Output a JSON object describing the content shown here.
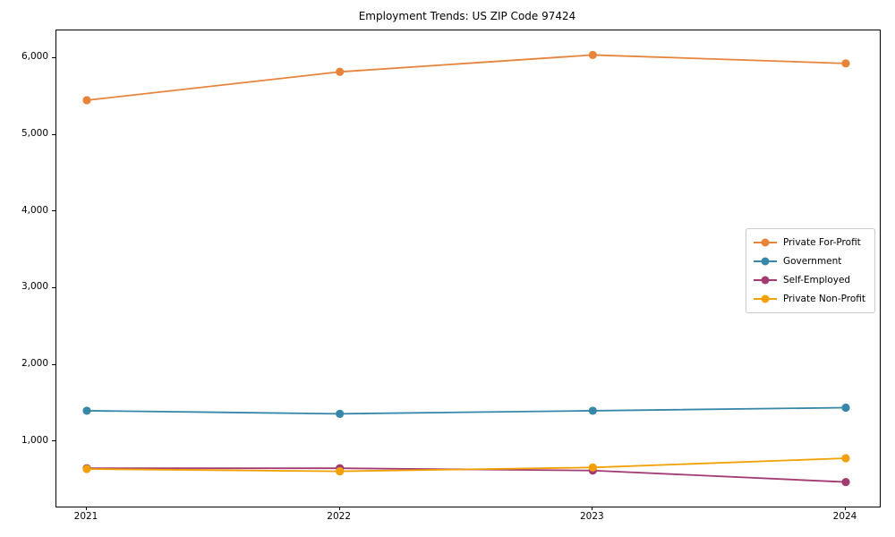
{
  "chart_data": {
    "type": "line",
    "title": "Employment Trends: US ZIP Code 97424",
    "categories": [
      "2021",
      "2022",
      "2023",
      "2024"
    ],
    "series": [
      {
        "name": "Private For-Profit",
        "color": "#E8833A",
        "values": [
          5450,
          5820,
          6040,
          5930
        ]
      },
      {
        "name": "Government",
        "color": "#3787A8",
        "values": [
          1400,
          1360,
          1400,
          1440
        ]
      },
      {
        "name": "Self-Employed",
        "color": "#A23B72",
        "values": [
          650,
          650,
          620,
          470
        ]
      },
      {
        "name": "Private Non-Profit",
        "color": "#F2A104",
        "values": [
          640,
          610,
          660,
          780
        ]
      }
    ],
    "xlabel": "",
    "ylabel": "",
    "ylim": [
      150,
      6360
    ],
    "yticks": [
      1000,
      2000,
      3000,
      4000,
      5000,
      6000
    ],
    "ytick_labels": [
      "1,000",
      "2,000",
      "3,000",
      "4,000",
      "5,000",
      "6,000"
    ],
    "grid": false,
    "legend_position": "center right",
    "marker": "circle",
    "line_width": 1.8,
    "marker_radius": 4.6
  }
}
